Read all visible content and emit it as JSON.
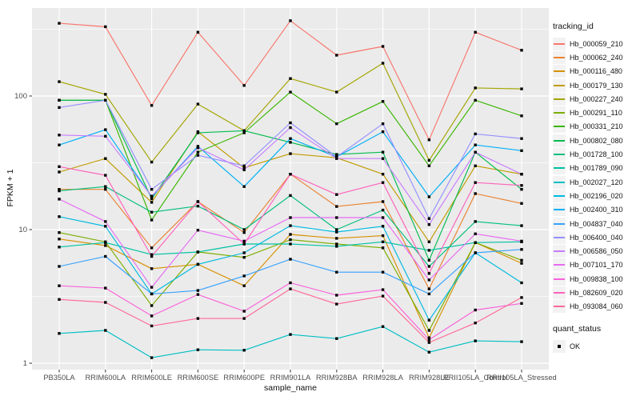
{
  "chart_data": {
    "type": "line",
    "title": "",
    "xlabel": "sample_name",
    "ylabel": "FPKM + 1",
    "yscale": "log10",
    "y_ticks": [
      1,
      10,
      100
    ],
    "y_minor_ticks": [
      3.16,
      31.6,
      316
    ],
    "ylim_approx": [
      0.9,
      500
    ],
    "grid": true,
    "legend_position": "right",
    "legend_title": "tracking_id",
    "quant_legend": {
      "title": "quant_status",
      "items": [
        "OK"
      ],
      "marker": "filled-black-square"
    },
    "colors": {
      "panel_bg": "#ebebeb",
      "grid": "#ffffff",
      "tick_text": "#4d4d4d",
      "axis_title": "#111111",
      "marker": "#000000",
      "legend_key_bg": "#f2f2f2"
    },
    "categories": [
      "PB350LA",
      "RRIM600LA",
      "RRIM600LE",
      "RRIM600SE",
      "RRIM600PE",
      "RRIM901LA",
      "RRIM928BA",
      "RRIM928LA",
      "RRIM928LE",
      "RRII105LA_Control",
      "RRII105LA_Stressed"
    ],
    "series": [
      {
        "name": "Hb_000059_210",
        "color": "#F8766D",
        "values": [
          350,
          330,
          85,
          300,
          120,
          366,
          202,
          235,
          47,
          300,
          220
        ]
      },
      {
        "name": "Hb_000062_240",
        "color": "#EA8331",
        "values": [
          20,
          20,
          7.3,
          16.2,
          9.5,
          26,
          14.9,
          16.2,
          3.6,
          18.6,
          15.7
        ]
      },
      {
        "name": "Hb_000116_480",
        "color": "#D89000",
        "values": [
          8.5,
          7.6,
          5.1,
          5.5,
          3.8,
          9.2,
          8.6,
          9.0,
          1.55,
          8.0,
          5.6
        ]
      },
      {
        "name": "Hb_000179_130",
        "color": "#C09B00",
        "values": [
          27,
          34,
          16,
          54,
          29,
          37,
          34.5,
          26,
          8.1,
          30,
          26
        ]
      },
      {
        "name": "Hb_000227_240",
        "color": "#A3A500",
        "values": [
          128,
          103,
          32,
          87,
          55,
          135,
          107,
          176,
          33,
          115,
          113
        ]
      },
      {
        "name": "Hb_000291_110",
        "color": "#7CAE00",
        "values": [
          9.5,
          8.1,
          2.7,
          6.8,
          6.2,
          8.4,
          7.8,
          7.3,
          1.76,
          8.0,
          5.9
        ]
      },
      {
        "name": "Hb_000331_210",
        "color": "#39B600",
        "values": [
          93,
          93,
          11.8,
          38,
          53,
          107,
          62,
          91,
          30,
          93,
          71
        ]
      },
      {
        "name": "Hb_000802_080",
        "color": "#00BB4E",
        "values": [
          93,
          93,
          17,
          53,
          55,
          45,
          36.5,
          38,
          5.9,
          38,
          20
        ]
      },
      {
        "name": "Hb_001728_100",
        "color": "#00BF7D",
        "values": [
          19.5,
          21,
          13.5,
          15,
          10,
          18,
          10,
          14,
          5.3,
          11.5,
          10.7
        ]
      },
      {
        "name": "Hb_001789_090",
        "color": "#00C1A3",
        "values": [
          7.4,
          8.0,
          6.5,
          6.8,
          7.8,
          7.8,
          7.5,
          8.1,
          7.0,
          8.0,
          8.1
        ]
      },
      {
        "name": "Hb_002027_120",
        "color": "#00BFC4",
        "values": [
          1.67,
          1.76,
          1.1,
          1.26,
          1.25,
          1.64,
          1.53,
          1.88,
          1.21,
          1.47,
          1.45
        ]
      },
      {
        "name": "Hb_002196_020",
        "color": "#00BAE0",
        "values": [
          12.5,
          10.6,
          3.3,
          5.5,
          6.7,
          10.7,
          9.6,
          10.6,
          2.1,
          6.7,
          4.0
        ]
      },
      {
        "name": "Hb_002400_310",
        "color": "#00B0F6",
        "values": [
          43,
          56,
          17.6,
          42,
          21,
          48,
          35,
          54,
          17.6,
          43,
          39
        ]
      },
      {
        "name": "Hb_004837_040",
        "color": "#35A2FF",
        "values": [
          5.3,
          6.3,
          3.3,
          3.5,
          4.5,
          6.0,
          4.8,
          4.8,
          3.3,
          6.7,
          7.1
        ]
      },
      {
        "name": "Hb_006400_040",
        "color": "#9590FF",
        "values": [
          82,
          93,
          20,
          36,
          30,
          63,
          35,
          62,
          12.1,
          52,
          48
        ]
      },
      {
        "name": "Hb_006586_050",
        "color": "#C77CFF",
        "values": [
          51,
          50,
          17.8,
          41,
          28,
          58,
          34,
          34,
          10.9,
          38,
          26
        ]
      },
      {
        "name": "Hb_007101_170",
        "color": "#E76BF3",
        "values": [
          16.9,
          11.5,
          3.7,
          9.9,
          8.2,
          12.3,
          12.3,
          12.3,
          4.2,
          9.3,
          8.2
        ]
      },
      {
        "name": "Hb_009838_100",
        "color": "#FA62DB",
        "values": [
          3.8,
          3.65,
          2.26,
          3.27,
          2.45,
          4.0,
          3.23,
          3.55,
          1.5,
          2.5,
          2.8
        ]
      },
      {
        "name": "Hb_082609_020",
        "color": "#FF62BC",
        "values": [
          29.6,
          25.5,
          6.3,
          16.2,
          7.8,
          26,
          18.3,
          22.5,
          4.7,
          22.5,
          21.4
        ]
      },
      {
        "name": "Hb_093084_060",
        "color": "#FF6A98",
        "values": [
          3.0,
          2.85,
          1.9,
          2.16,
          2.16,
          3.6,
          2.77,
          3.18,
          1.43,
          2.0,
          3.1
        ]
      }
    ]
  }
}
